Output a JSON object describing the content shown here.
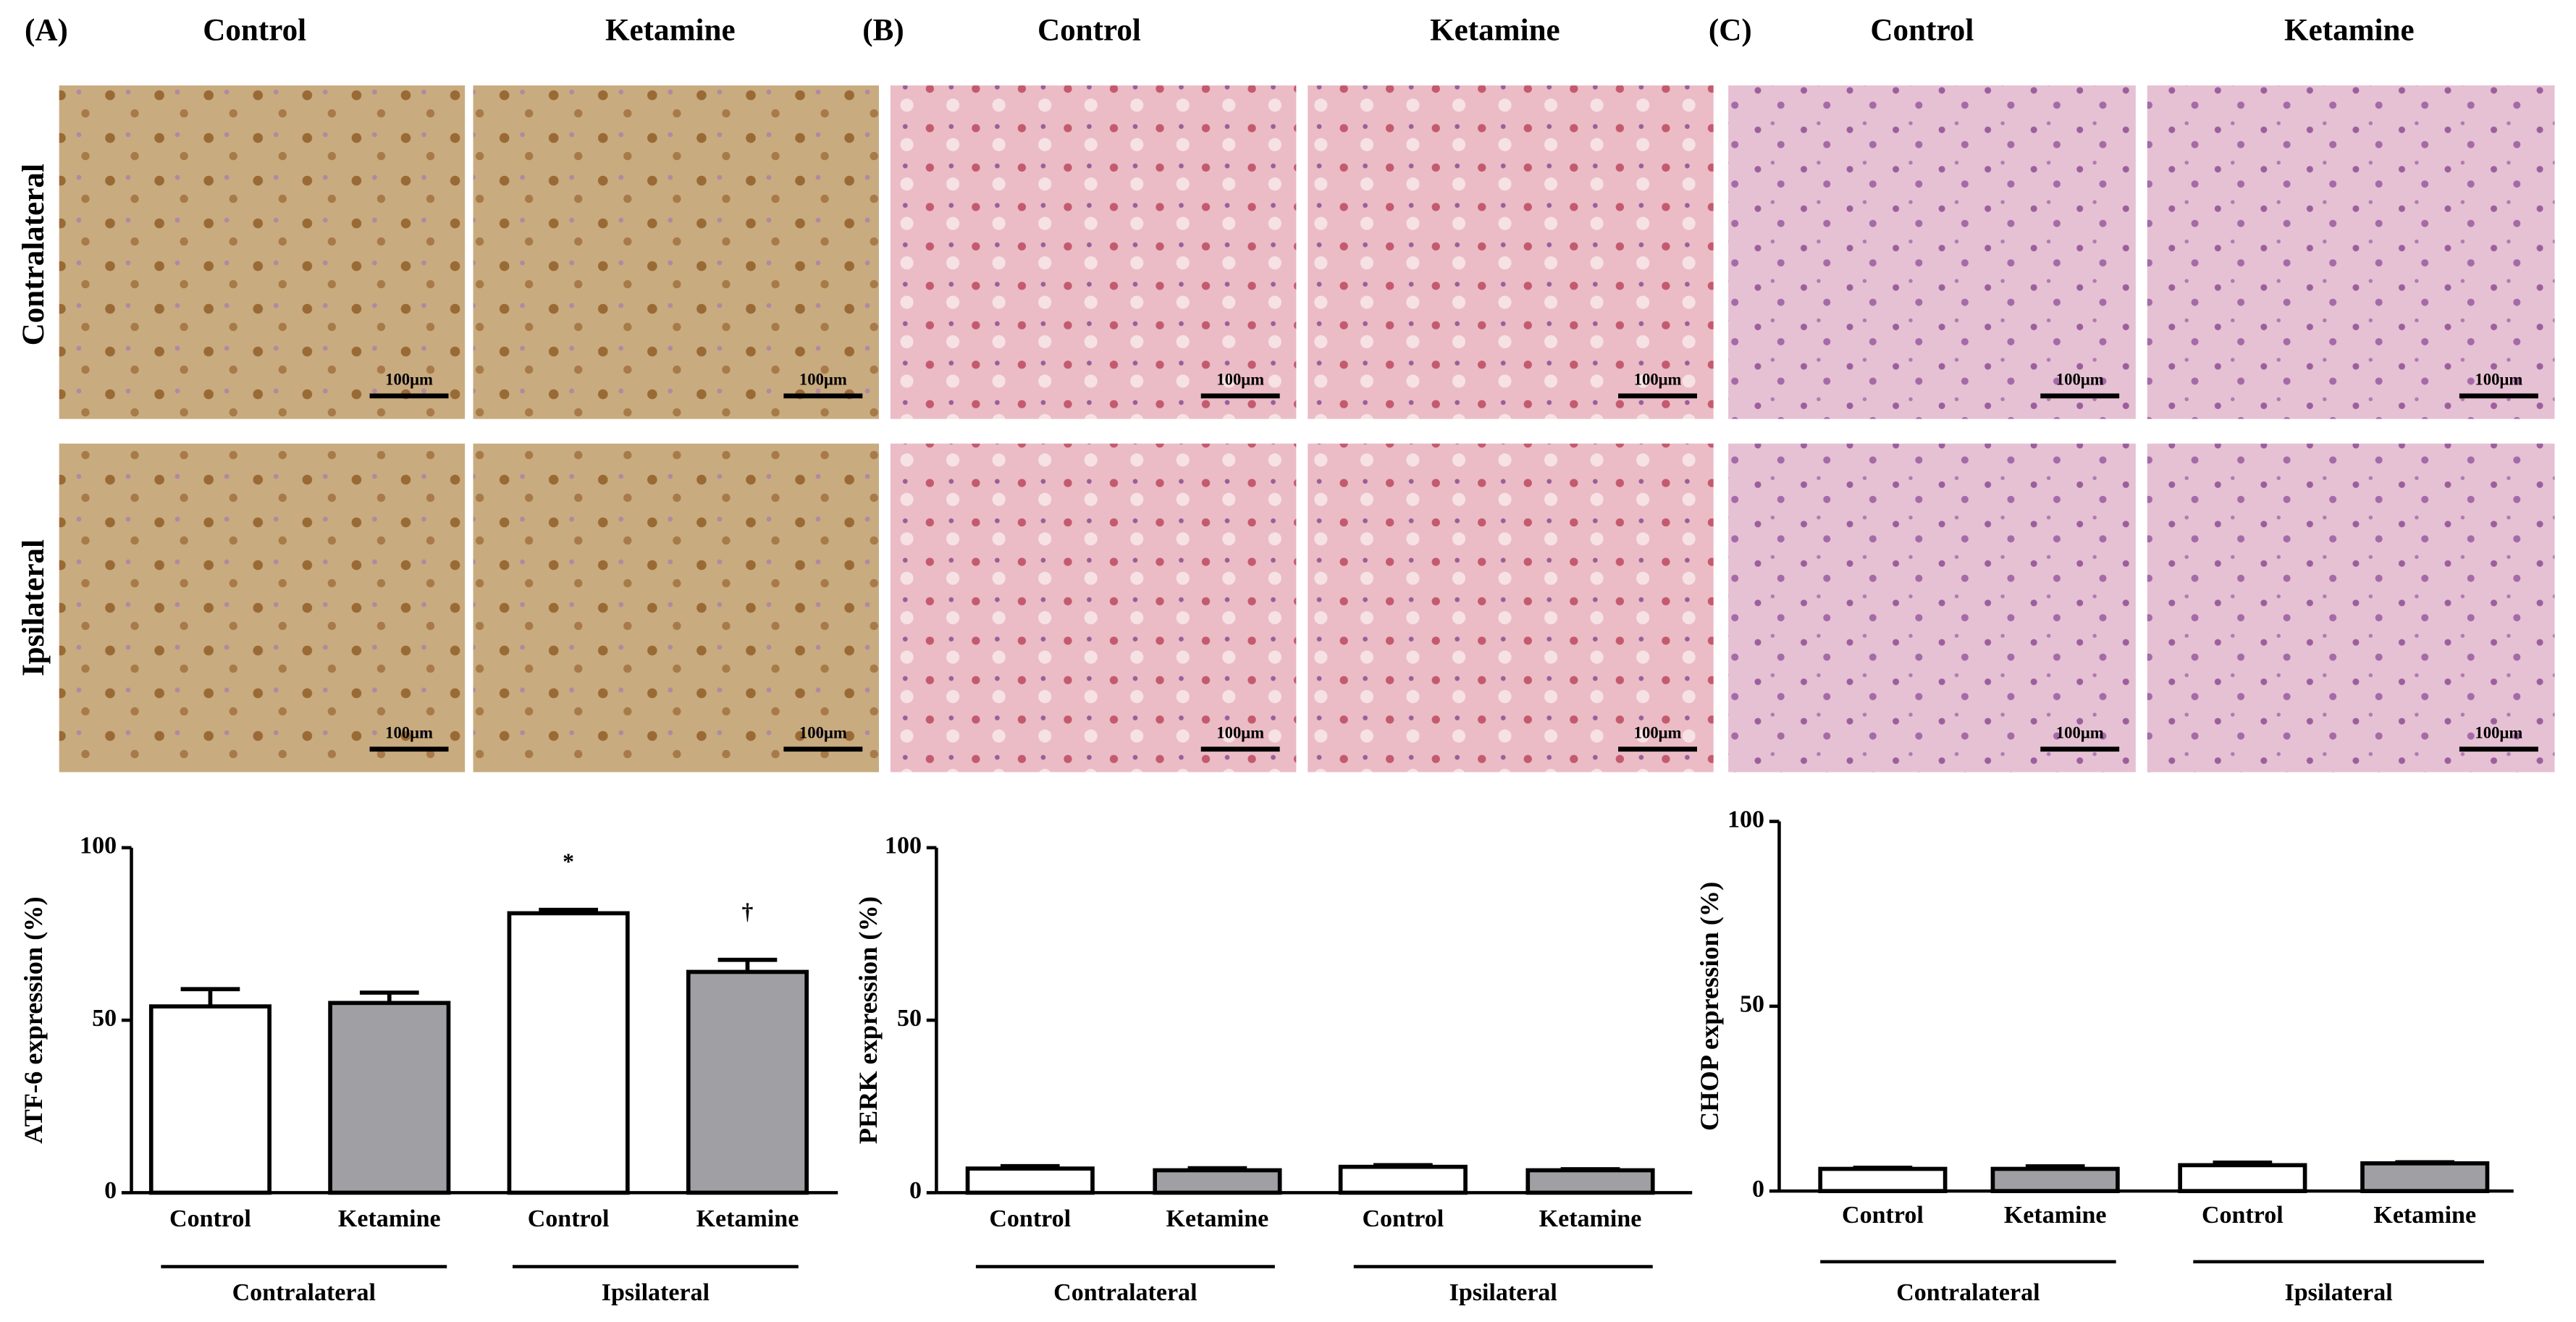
{
  "panels": [
    {
      "label": "(A)",
      "columns": [
        "Control",
        "Ketamine"
      ],
      "rows": [
        "Contralateral",
        "Ipsilateral"
      ],
      "scale_bar": "100μm"
    },
    {
      "label": "(B)",
      "columns": [
        "Control",
        "Ketamine"
      ],
      "scale_bar": "100μm"
    },
    {
      "label": "(C)",
      "columns": [
        "Control",
        "Ketamine"
      ],
      "scale_bar": "100μm"
    }
  ],
  "chart_data": [
    {
      "type": "bar",
      "ylabel": "ATF-6 expression (%)",
      "categories": [
        "Control",
        "Ketamine",
        "Control",
        "Ketamine"
      ],
      "groups": [
        "Contralateral",
        "Ipsilateral"
      ],
      "values": [
        54,
        55,
        81,
        64
      ],
      "errors": [
        5,
        3,
        1,
        3.5
      ],
      "colors": [
        "#ffffff",
        "#a0a0a4",
        "#ffffff",
        "#a0a0a4"
      ],
      "ylim": [
        0,
        100
      ],
      "yticks": [
        0,
        50,
        100
      ],
      "annotations": [
        {
          "text": "*",
          "bar": 2
        },
        {
          "text": "†",
          "bar": 3
        }
      ]
    },
    {
      "type": "bar",
      "ylabel": "PERK expression  (%)",
      "categories": [
        "Control",
        "Ketamine",
        "Control",
        "Ketamine"
      ],
      "groups": [
        "Contralateral",
        "Ipsilateral"
      ],
      "values": [
        7,
        6.5,
        7.5,
        6.5
      ],
      "errors": [
        0.7,
        0.6,
        0.5,
        0.3
      ],
      "colors": [
        "#ffffff",
        "#a0a0a4",
        "#ffffff",
        "#a0a0a4"
      ],
      "ylim": [
        0,
        100
      ],
      "yticks": [
        0,
        50,
        100
      ]
    },
    {
      "type": "bar",
      "ylabel": "CHOP expression  (%)",
      "categories": [
        "Control",
        "Ketamine",
        "Control",
        "Ketamine"
      ],
      "groups": [
        "Contralateral",
        "Ipsilateral"
      ],
      "values": [
        6,
        6,
        7,
        7.5
      ],
      "errors": [
        0.3,
        0.7,
        0.7,
        0.3
      ],
      "colors": [
        "#ffffff",
        "#a0a0a4",
        "#ffffff",
        "#a0a0a4"
      ],
      "ylim": [
        0,
        100
      ],
      "yticks": [
        0,
        50,
        100
      ]
    }
  ]
}
